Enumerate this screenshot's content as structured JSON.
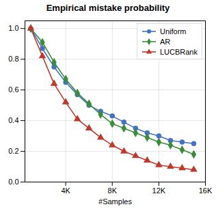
{
  "chart_data": {
    "type": "line",
    "title": "Empirical mistake probability",
    "xlabel": "#Samples",
    "x": [
      1000,
      2000,
      3000,
      4000,
      5000,
      6000,
      7000,
      8000,
      9000,
      10000,
      11000,
      12000,
      13000,
      14000,
      15000
    ],
    "series": [
      {
        "name": "Uniform",
        "color": "#4472c4",
        "marker": "circle",
        "values": [
          1.0,
          0.87,
          0.75,
          0.65,
          0.57,
          0.5,
          0.46,
          0.43,
          0.39,
          0.35,
          0.32,
          0.3,
          0.27,
          0.26,
          0.25
        ]
      },
      {
        "name": "AR",
        "color": "#3a8c3a",
        "marker": "diamond",
        "values": [
          1.0,
          0.91,
          0.78,
          0.67,
          0.58,
          0.51,
          0.44,
          0.38,
          0.35,
          0.32,
          0.29,
          0.26,
          0.24,
          0.21,
          0.18
        ]
      },
      {
        "name": "LUCBRank",
        "color": "#c0392b",
        "marker": "triangle",
        "values": [
          1.0,
          0.82,
          0.64,
          0.52,
          0.41,
          0.35,
          0.29,
          0.24,
          0.2,
          0.17,
          0.14,
          0.11,
          0.1,
          0.09,
          0.08
        ]
      }
    ],
    "xlim": [
      500,
      16000
    ],
    "ylim": [
      0.0,
      1.05
    ],
    "xticks": [
      {
        "value": 4000,
        "label": "4K"
      },
      {
        "value": 8000,
        "label": "8K"
      },
      {
        "value": 12000,
        "label": "12K"
      },
      {
        "value": 16000,
        "label": "16K"
      }
    ],
    "yticks": [
      {
        "value": 0.0,
        "label": "0.0"
      },
      0.2,
      0.4,
      0.6,
      0.8,
      {
        "value": 1.0,
        "label": "1.0"
      }
    ],
    "grid": true,
    "legend": "upper right"
  }
}
